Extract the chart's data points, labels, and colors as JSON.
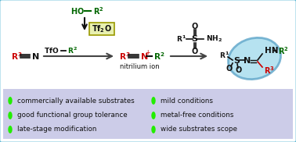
{
  "bg_color": "#ffffff",
  "border_color": "#5bb8d4",
  "top_bg": "#ffffff",
  "bottom_bg": "#cccce8",
  "green_bullet": "#22ee00",
  "bullet_left": [
    "commercially available substrates",
    "good functional group tolerance",
    "late-stage modification"
  ],
  "bullet_right": [
    "mild conditions",
    "metal-free conditions",
    "wide substrates scope"
  ],
  "tf2o_box_color": "#e8f0b0",
  "tf2o_border": "#999900",
  "ellipse_color": "#aaddee",
  "ellipse_border": "#66aacc",
  "red_color": "#cc0000",
  "dark_green": "#006600",
  "black": "#111111",
  "gray_arrow": "#444444",
  "figsize": [
    3.78,
    1.82
  ],
  "dpi": 100
}
